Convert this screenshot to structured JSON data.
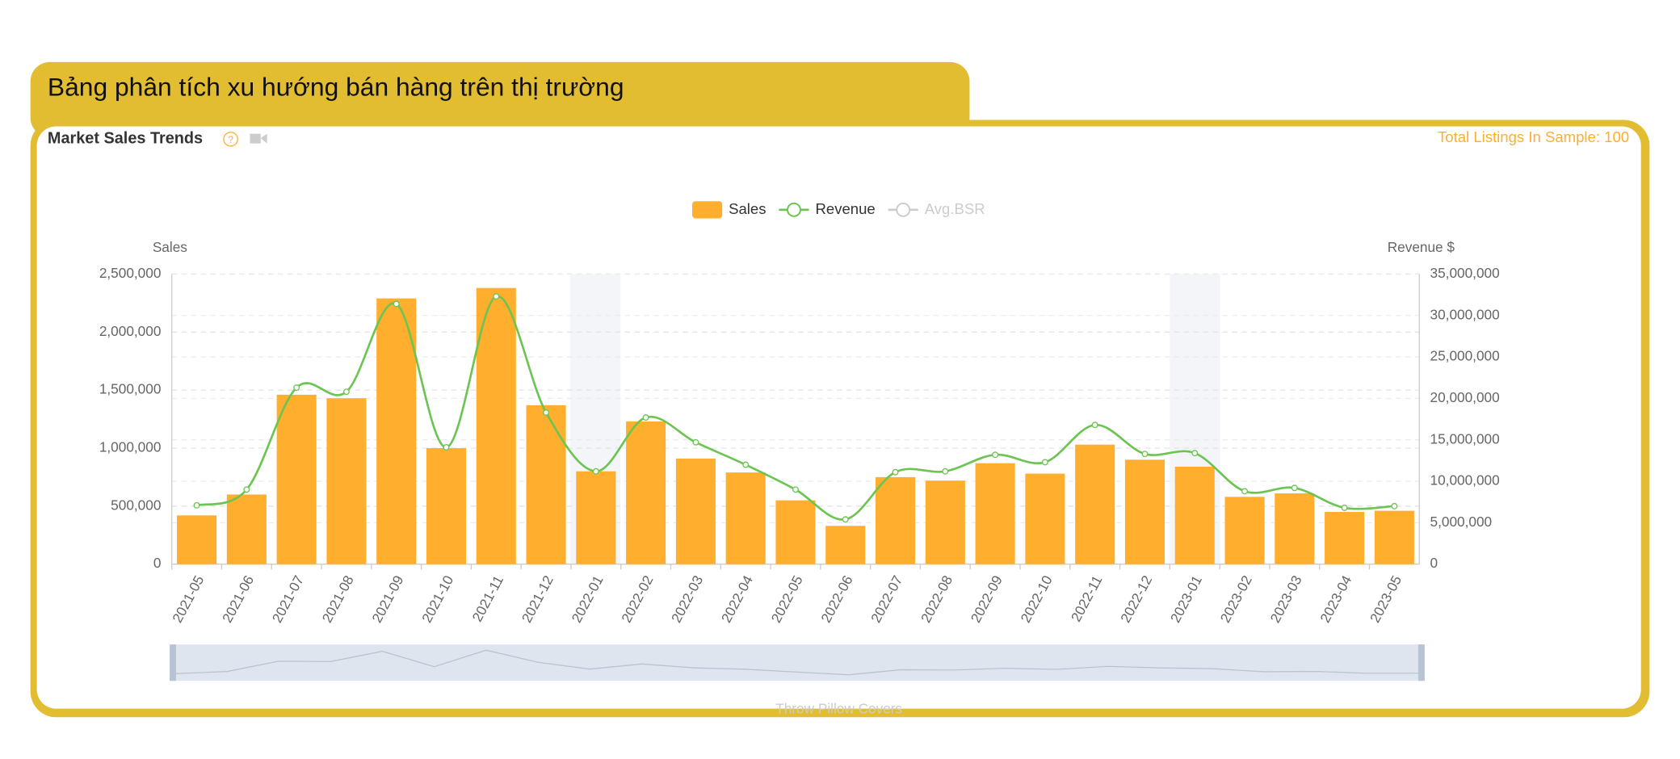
{
  "header": {
    "title": "Bảng phân tích xu hướng bán hàng trên thị trường"
  },
  "panel": {
    "title": "Market Sales Trends",
    "listings": "Total Listings In Sample: 100",
    "footer_label": "Throw Pillow Covers"
  },
  "chart_data": {
    "type": "bar-line",
    "categories": [
      "2021-05",
      "2021-06",
      "2021-07",
      "2021-08",
      "2021-09",
      "2021-10",
      "2021-11",
      "2021-12",
      "2022-01",
      "2022-02",
      "2022-03",
      "2022-04",
      "2022-05",
      "2022-06",
      "2022-07",
      "2022-08",
      "2022-09",
      "2022-10",
      "2022-11",
      "2022-12",
      "2023-01",
      "2023-02",
      "2023-03",
      "2023-04",
      "2023-05"
    ],
    "series": [
      {
        "name": "Sales",
        "type": "bar",
        "color": "#ffae2d",
        "values": [
          420000,
          600000,
          1460000,
          1430000,
          2290000,
          1000000,
          2380000,
          1370000,
          800000,
          1230000,
          910000,
          790000,
          550000,
          330000,
          750000,
          720000,
          870000,
          780000,
          1030000,
          900000,
          840000,
          580000,
          610000,
          450000,
          460000
        ]
      },
      {
        "name": "Revenue",
        "type": "line",
        "axis": "y2",
        "color": "#6cc552",
        "values": [
          7100000,
          9000000,
          21300000,
          20800000,
          31400000,
          14100000,
          32300000,
          18300000,
          11200000,
          17700000,
          14700000,
          12000000,
          9000000,
          5400000,
          11100000,
          11200000,
          13200000,
          12300000,
          16800000,
          13300000,
          13400000,
          8800000,
          9200000,
          6800000,
          7000000
        ]
      },
      {
        "name": "Avg.BSR",
        "type": "line",
        "color": "#cccccc",
        "visible": false
      }
    ],
    "ylabel": "Sales",
    "y2label": "Revenue $",
    "ylim": [
      0,
      2500000
    ],
    "yticks": [
      0,
      {
        "value": 500000,
        "label": "500,000"
      },
      {
        "value": 1000000,
        "label": "1,000,000"
      },
      {
        "value": 1500000,
        "label": "1,500,000"
      },
      {
        "value": 2000000,
        "label": "2,000,000"
      },
      {
        "value": 2500000,
        "label": "2,500,000"
      }
    ],
    "y2lim": [
      0,
      35000000
    ],
    "y2ticks": [
      0,
      {
        "value": 5000000,
        "label": "5,000,000"
      },
      {
        "value": 10000000,
        "label": "10,000,000"
      },
      {
        "value": 15000000,
        "label": "15,000,000"
      },
      {
        "value": 20000000,
        "label": "20,000,000"
      },
      {
        "value": 25000000,
        "label": "25,000,000"
      },
      {
        "value": 30000000,
        "label": "30,000,000"
      },
      {
        "value": 35000000,
        "label": "35,000,000"
      }
    ],
    "grid": true,
    "legend": "top"
  }
}
